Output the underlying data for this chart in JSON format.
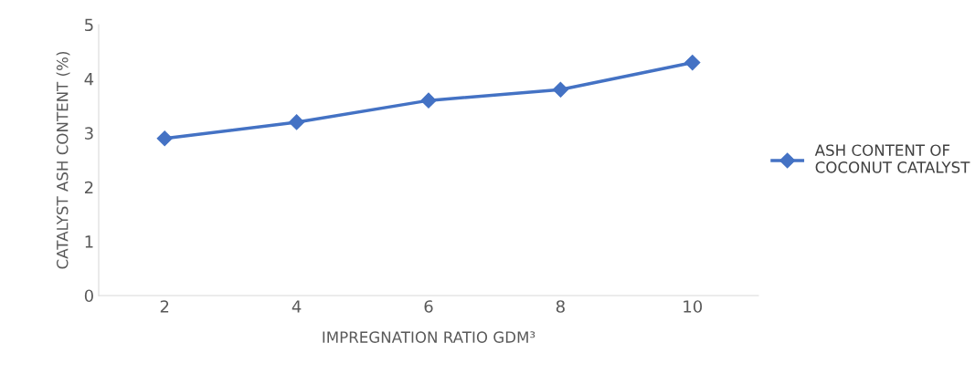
{
  "chart_data": {
    "type": "line",
    "xlabel": "IMPREGNATION RATIO GDM³",
    "ylabel": "CATALYST ASH CONTENT (%)",
    "categories": [
      "2",
      "4",
      "6",
      "8",
      "10"
    ],
    "series": [
      {
        "name": "ASH CONTENT OF\nCOCONUT CATALYST",
        "color": "#4472c4",
        "values": [
          2.9,
          3.2,
          3.6,
          3.8,
          4.3
        ]
      }
    ],
    "ylim": [
      0,
      5
    ],
    "yticks": [
      0,
      1,
      2,
      3,
      4,
      5
    ],
    "grid": false,
    "legend": "right",
    "marker": "diamond",
    "line_style": "solid"
  }
}
